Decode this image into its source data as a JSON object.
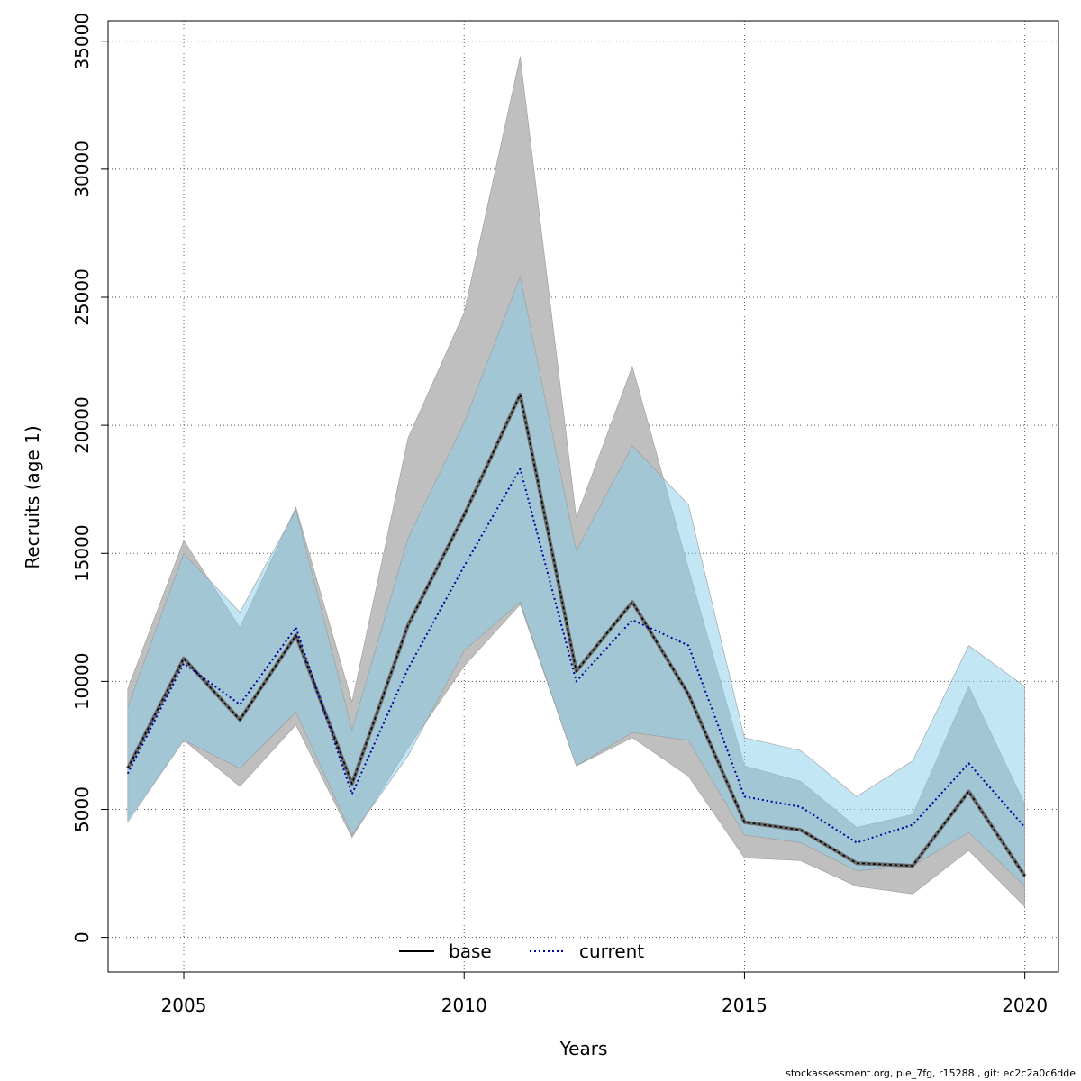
{
  "chart_data": {
    "type": "line",
    "title": "",
    "xlabel": "Years",
    "ylabel": "Recruits (age 1)",
    "xlim": [
      2003.65,
      2020.6
    ],
    "ylim": [
      -1350,
      35800
    ],
    "x_ticks": [
      2005,
      2010,
      2015,
      2020
    ],
    "y_ticks": [
      0,
      5000,
      10000,
      15000,
      20000,
      25000,
      30000,
      35000
    ],
    "grid": true,
    "legend_position": "bottom-center",
    "x": [
      2004,
      2005,
      2006,
      2007,
      2008,
      2009,
      2010,
      2011,
      2012,
      2013,
      2014,
      2015,
      2016,
      2017,
      2018,
      2019,
      2020
    ],
    "series": [
      {
        "name": "base",
        "line_style": "solid",
        "color": "#000000",
        "band_color": "#bebebe",
        "values": [
          6600,
          10900,
          8500,
          11800,
          6000,
          12200,
          16500,
          21200,
          10400,
          13100,
          9500,
          4500,
          4200,
          2900,
          2800,
          5700,
          2400
        ],
        "lower": [
          4600,
          7700,
          5900,
          8300,
          3900,
          7400,
          10600,
          13000,
          6700,
          7800,
          6300,
          3100,
          3000,
          2000,
          1700,
          3400,
          1200
        ],
        "upper": [
          9700,
          15500,
          12100,
          16800,
          9200,
          19500,
          24400,
          34400,
          16400,
          22300,
          14400,
          6700,
          6100,
          4300,
          4800,
          9800,
          5200
        ]
      },
      {
        "name": "current",
        "line_style": "dotted",
        "color": "#00009c",
        "band_color": "#87ceeb",
        "values": [
          6400,
          10700,
          9100,
          12100,
          5600,
          10500,
          14500,
          18300,
          10000,
          12400,
          11400,
          5500,
          5100,
          3700,
          4400,
          6800,
          4300
        ],
        "lower": [
          4500,
          7700,
          6600,
          8800,
          4000,
          7100,
          11200,
          13100,
          6700,
          8000,
          7700,
          4000,
          3700,
          2600,
          2800,
          4100,
          2000
        ],
        "upper": [
          9000,
          15000,
          12700,
          16700,
          8100,
          15600,
          20100,
          25800,
          15100,
          19200,
          16900,
          7800,
          7300,
          5500,
          6900,
          11400,
          9800
        ]
      }
    ]
  },
  "legend": {
    "items": [
      {
        "label": "base",
        "style": "solid",
        "color": "#000000"
      },
      {
        "label": "current",
        "style": "dotted",
        "color": "#00009c"
      }
    ]
  },
  "footer": "stockassessment.org, ple_7fg, r15288 , git: ec2c2a0c6dde"
}
